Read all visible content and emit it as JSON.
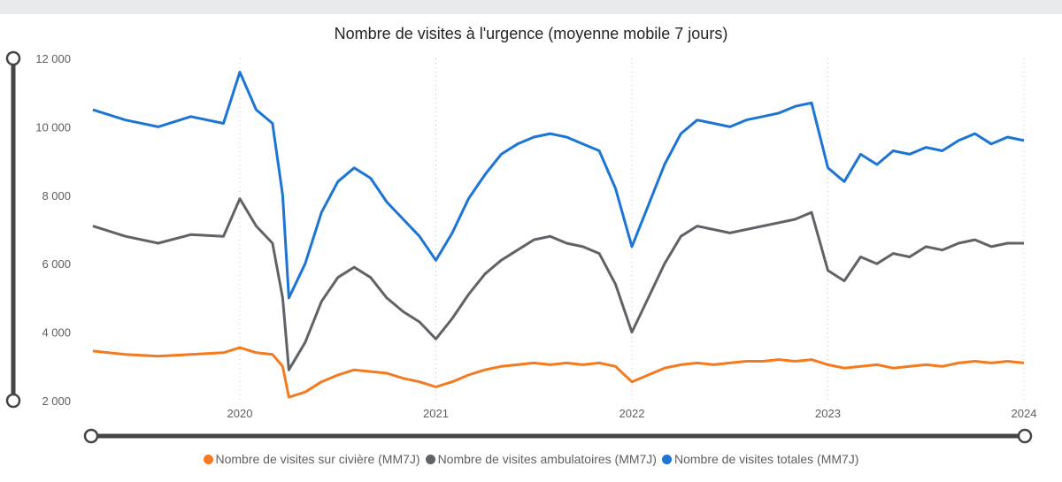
{
  "chart_data": {
    "type": "line",
    "title": "Nombre de visites à l'urgence (moyenne mobile 7 jours)",
    "x_ticks": [
      "2020",
      "2021",
      "2022",
      "2023",
      "2024"
    ],
    "y_ticks": [
      "2 000",
      "4 000",
      "6 000",
      "8 000",
      "10 000",
      "12 000"
    ],
    "ylim": [
      2000,
      12000
    ],
    "xlim": [
      "2019-04",
      "2024-01"
    ],
    "grid": "vertical dotted at year ticks",
    "legend_position": "bottom",
    "series": [
      {
        "name": "Nombre de visites sur civière (MM7J)",
        "color": "#f47a1f",
        "points": [
          [
            "2019-04",
            3450
          ],
          [
            "2019-06",
            3350
          ],
          [
            "2019-08",
            3300
          ],
          [
            "2019-10",
            3350
          ],
          [
            "2019-12",
            3400
          ],
          [
            "2020-01",
            3550
          ],
          [
            "2020-02",
            3400
          ],
          [
            "2020-03",
            3350
          ],
          [
            "2020-03-20",
            3000
          ],
          [
            "2020-04",
            2100
          ],
          [
            "2020-05",
            2250
          ],
          [
            "2020-06",
            2550
          ],
          [
            "2020-07",
            2750
          ],
          [
            "2020-08",
            2900
          ],
          [
            "2020-09",
            2850
          ],
          [
            "2020-10",
            2800
          ],
          [
            "2020-11",
            2650
          ],
          [
            "2020-12",
            2550
          ],
          [
            "2021-01",
            2400
          ],
          [
            "2021-02",
            2550
          ],
          [
            "2021-03",
            2750
          ],
          [
            "2021-04",
            2900
          ],
          [
            "2021-05",
            3000
          ],
          [
            "2021-06",
            3050
          ],
          [
            "2021-07",
            3100
          ],
          [
            "2021-08",
            3050
          ],
          [
            "2021-09",
            3100
          ],
          [
            "2021-10",
            3050
          ],
          [
            "2021-11",
            3100
          ],
          [
            "2021-12",
            3000
          ],
          [
            "2022-01",
            2550
          ],
          [
            "2022-02",
            2750
          ],
          [
            "2022-03",
            2950
          ],
          [
            "2022-04",
            3050
          ],
          [
            "2022-05",
            3100
          ],
          [
            "2022-06",
            3050
          ],
          [
            "2022-07",
            3100
          ],
          [
            "2022-08",
            3150
          ],
          [
            "2022-09",
            3150
          ],
          [
            "2022-10",
            3200
          ],
          [
            "2022-11",
            3150
          ],
          [
            "2022-12",
            3200
          ],
          [
            "2023-01",
            3050
          ],
          [
            "2023-02",
            2950
          ],
          [
            "2023-03",
            3000
          ],
          [
            "2023-04",
            3050
          ],
          [
            "2023-05",
            2950
          ],
          [
            "2023-06",
            3000
          ],
          [
            "2023-07",
            3050
          ],
          [
            "2023-08",
            3000
          ],
          [
            "2023-09",
            3100
          ],
          [
            "2023-10",
            3150
          ],
          [
            "2023-11",
            3100
          ],
          [
            "2023-12",
            3150
          ],
          [
            "2024-01",
            3100
          ]
        ]
      },
      {
        "name": "Nombre de visites ambulatoires (MM7J)",
        "color": "#5f6368",
        "points": [
          [
            "2019-04",
            7100
          ],
          [
            "2019-06",
            6800
          ],
          [
            "2019-08",
            6600
          ],
          [
            "2019-10",
            6850
          ],
          [
            "2019-12",
            6800
          ],
          [
            "2020-01",
            7900
          ],
          [
            "2020-02",
            7100
          ],
          [
            "2020-03",
            6600
          ],
          [
            "2020-03-20",
            5000
          ],
          [
            "2020-04",
            2900
          ],
          [
            "2020-05",
            3700
          ],
          [
            "2020-06",
            4900
          ],
          [
            "2020-07",
            5600
          ],
          [
            "2020-08",
            5900
          ],
          [
            "2020-09",
            5600
          ],
          [
            "2020-10",
            5000
          ],
          [
            "2020-11",
            4600
          ],
          [
            "2020-12",
            4300
          ],
          [
            "2021-01",
            3800
          ],
          [
            "2021-02",
            4400
          ],
          [
            "2021-03",
            5100
          ],
          [
            "2021-04",
            5700
          ],
          [
            "2021-05",
            6100
          ],
          [
            "2021-06",
            6400
          ],
          [
            "2021-07",
            6700
          ],
          [
            "2021-08",
            6800
          ],
          [
            "2021-09",
            6600
          ],
          [
            "2021-10",
            6500
          ],
          [
            "2021-11",
            6300
          ],
          [
            "2021-12",
            5400
          ],
          [
            "2022-01",
            4000
          ],
          [
            "2022-02",
            5000
          ],
          [
            "2022-03",
            6000
          ],
          [
            "2022-04",
            6800
          ],
          [
            "2022-05",
            7100
          ],
          [
            "2022-06",
            7000
          ],
          [
            "2022-07",
            6900
          ],
          [
            "2022-08",
            7000
          ],
          [
            "2022-09",
            7100
          ],
          [
            "2022-10",
            7200
          ],
          [
            "2022-11",
            7300
          ],
          [
            "2022-12",
            7500
          ],
          [
            "2023-01",
            5800
          ],
          [
            "2023-02",
            5500
          ],
          [
            "2023-03",
            6200
          ],
          [
            "2023-04",
            6000
          ],
          [
            "2023-05",
            6300
          ],
          [
            "2023-06",
            6200
          ],
          [
            "2023-07",
            6500
          ],
          [
            "2023-08",
            6400
          ],
          [
            "2023-09",
            6600
          ],
          [
            "2023-10",
            6700
          ],
          [
            "2023-11",
            6500
          ],
          [
            "2023-12",
            6600
          ],
          [
            "2024-01",
            6600
          ]
        ]
      },
      {
        "name": "Nombre de visites totales (MM7J)",
        "color": "#1c74d4",
        "points": [
          [
            "2019-04",
            10500
          ],
          [
            "2019-06",
            10200
          ],
          [
            "2019-08",
            10000
          ],
          [
            "2019-10",
            10300
          ],
          [
            "2019-12",
            10100
          ],
          [
            "2020-01",
            11600
          ],
          [
            "2020-02",
            10500
          ],
          [
            "2020-03",
            10100
          ],
          [
            "2020-03-20",
            8000
          ],
          [
            "2020-04",
            5000
          ],
          [
            "2020-05",
            6000
          ],
          [
            "2020-06",
            7500
          ],
          [
            "2020-07",
            8400
          ],
          [
            "2020-08",
            8800
          ],
          [
            "2020-09",
            8500
          ],
          [
            "2020-10",
            7800
          ],
          [
            "2020-11",
            7300
          ],
          [
            "2020-12",
            6800
          ],
          [
            "2021-01",
            6100
          ],
          [
            "2021-02",
            6900
          ],
          [
            "2021-03",
            7900
          ],
          [
            "2021-04",
            8600
          ],
          [
            "2021-05",
            9200
          ],
          [
            "2021-06",
            9500
          ],
          [
            "2021-07",
            9700
          ],
          [
            "2021-08",
            9800
          ],
          [
            "2021-09",
            9700
          ],
          [
            "2021-10",
            9500
          ],
          [
            "2021-11",
            9300
          ],
          [
            "2021-12",
            8200
          ],
          [
            "2022-01",
            6500
          ],
          [
            "2022-02",
            7700
          ],
          [
            "2022-03",
            8900
          ],
          [
            "2022-04",
            9800
          ],
          [
            "2022-05",
            10200
          ],
          [
            "2022-06",
            10100
          ],
          [
            "2022-07",
            10000
          ],
          [
            "2022-08",
            10200
          ],
          [
            "2022-09",
            10300
          ],
          [
            "2022-10",
            10400
          ],
          [
            "2022-11",
            10600
          ],
          [
            "2022-12",
            10700
          ],
          [
            "2023-01",
            8800
          ],
          [
            "2023-02",
            8400
          ],
          [
            "2023-03",
            9200
          ],
          [
            "2023-04",
            8900
          ],
          [
            "2023-05",
            9300
          ],
          [
            "2023-06",
            9200
          ],
          [
            "2023-07",
            9400
          ],
          [
            "2023-08",
            9300
          ],
          [
            "2023-09",
            9600
          ],
          [
            "2023-10",
            9800
          ],
          [
            "2023-11",
            9500
          ],
          [
            "2023-12",
            9700
          ],
          [
            "2024-01",
            9600
          ]
        ]
      }
    ]
  }
}
